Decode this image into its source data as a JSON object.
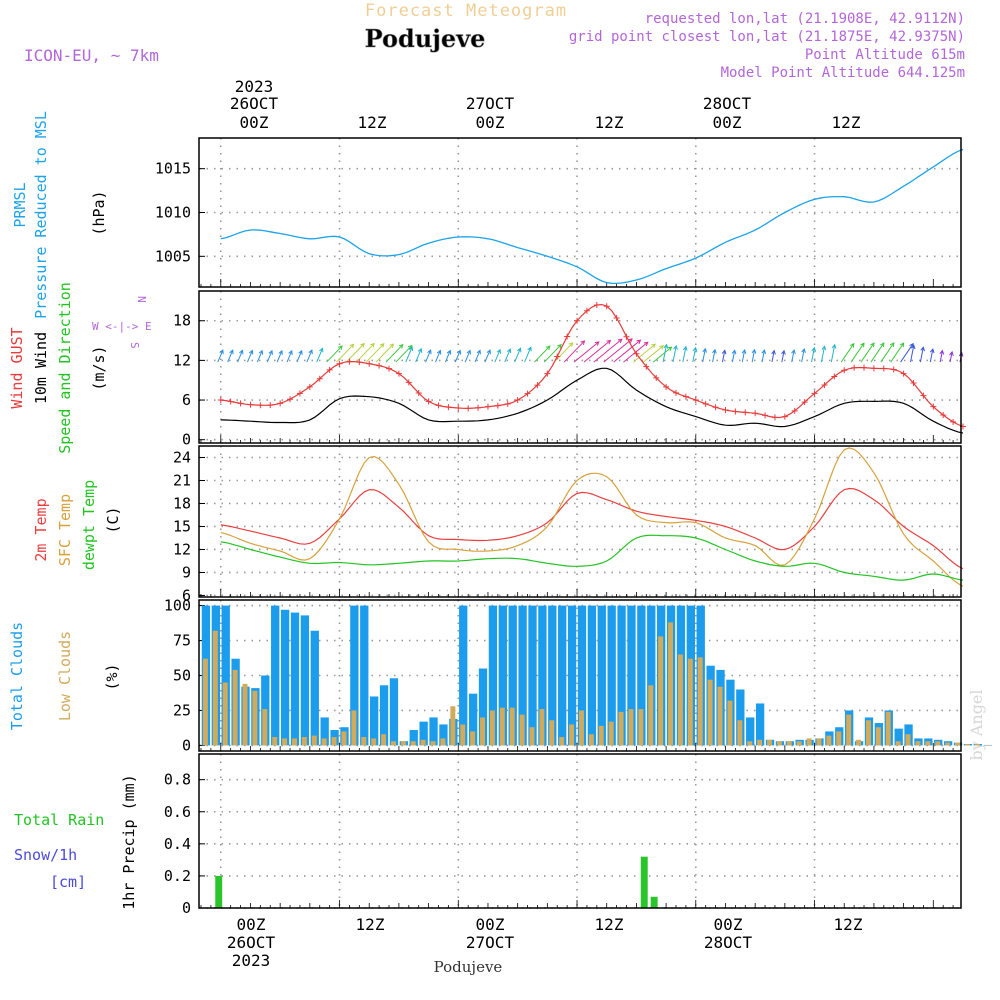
{
  "header": {
    "title": "Forecast Meteogram",
    "location": "Podujeve",
    "model": "ICON-EU, ~ 7km",
    "requested": "requested lon,lat (21.1908E, 42.9112N)",
    "gridpoint": "grid point closest lon,lat (21.1875E, 42.9375N)",
    "point_alt": "Point Altitude 615m",
    "model_alt": "Model Point Altitude 644.125m",
    "footer": "Podujeve",
    "watermark": "by Angel"
  },
  "time_axis": {
    "top_ticks": [
      "00Z",
      "12Z",
      "00Z",
      "12Z",
      "00Z",
      "12Z"
    ],
    "top_dates": [
      [
        "2023",
        "26OCT"
      ],
      [
        "27OCT"
      ],
      [
        "28OCT"
      ]
    ],
    "bottom_ticks": [
      "00Z",
      "12Z",
      "00Z",
      "12Z",
      "00Z",
      "12Z"
    ],
    "bottom_dates": [
      [
        "26OCT",
        "2023"
      ],
      [
        "27OCT"
      ],
      [
        "28OCT"
      ]
    ]
  },
  "panel_labels": {
    "p1": [
      "PRMSL",
      "Pressure Reduced to MSL",
      "(hPa)"
    ],
    "p2": [
      "Wind GUST",
      "10m Wind",
      "Speed and Direction",
      "(m/s)"
    ],
    "compass": [
      "N",
      "W <-|-> E",
      "S"
    ],
    "p3": [
      "2m Temp",
      "SFC Temp",
      "dewpt Temp",
      "(C)"
    ],
    "p4": [
      "Total Clouds",
      "Low Clouds",
      "(%)"
    ],
    "p5": [
      "Total  Rain",
      "Snow/1h",
      "[cm]",
      "1hr Precip (mm)"
    ]
  },
  "colors": {
    "pressure": "#1ca3e8",
    "gust": "#e83b3b",
    "wind": "#000000",
    "t2m": "#e84040",
    "tsfc": "#d6a23c",
    "dewpt": "#22c322",
    "totalcloud": "#1c9cec",
    "lowcloud": "#d2aa5a",
    "rain": "#2ac52a",
    "magenta": "#b366d9",
    "title": "#f0cf96",
    "grid": "#9a9a9a",
    "frame": "#000000",
    "snowlabel": "#4a4adc"
  },
  "chart_data": [
    {
      "type": "line",
      "name": "PRMSL (hPa)",
      "yticks": [
        1005,
        1010,
        1015
      ],
      "ylim": [
        1001.5,
        1018.5
      ],
      "x": [
        0,
        3,
        6,
        9,
        12,
        15,
        18,
        21,
        24,
        27,
        30,
        33,
        36,
        39,
        42,
        45,
        48,
        51,
        54,
        57,
        60,
        63,
        66,
        69,
        72,
        75
      ],
      "values": [
        1007.0,
        1008.0,
        1007.6,
        1007.0,
        1007.2,
        1005.3,
        1005.2,
        1006.5,
        1007.2,
        1007.0,
        1006.0,
        1005.0,
        1003.8,
        1002.0,
        1002.3,
        1003.6,
        1004.8,
        1006.6,
        1008.0,
        1010.0,
        1011.5,
        1011.8,
        1011.2,
        1013.0,
        1015.2,
        1017.2
      ]
    },
    {
      "type": "line",
      "name": "Wind GUST and 10m Wind (m/s)",
      "yticks": [
        0,
        6,
        12,
        18
      ],
      "ylim": [
        -0.5,
        22.5
      ],
      "x": [
        0,
        3,
        6,
        9,
        12,
        15,
        18,
        21,
        24,
        27,
        30,
        33,
        36,
        39,
        42,
        45,
        48,
        51,
        54,
        57,
        60,
        63,
        66,
        69,
        72,
        75
      ],
      "series": [
        {
          "name": "Wind GUST",
          "values": [
            6.0,
            5.3,
            5.5,
            8.0,
            11.5,
            11.5,
            10.0,
            5.8,
            4.8,
            5.0,
            6.0,
            10.0,
            18.0,
            20.2,
            13.0,
            8.0,
            6.0,
            4.5,
            4.0,
            3.5,
            7.0,
            10.5,
            10.8,
            10.0,
            5.0,
            2.0
          ]
        },
        {
          "name": "10m Wind",
          "values": [
            3.0,
            2.8,
            2.6,
            3.0,
            6.2,
            6.5,
            5.5,
            3.0,
            2.8,
            3.0,
            4.0,
            6.0,
            9.0,
            10.8,
            7.5,
            5.0,
            3.5,
            2.2,
            2.5,
            2.0,
            3.5,
            5.5,
            5.8,
            5.5,
            2.8,
            1.0
          ]
        }
      ]
    },
    {
      "type": "line",
      "name": "Temperature (C)",
      "yticks": [
        6,
        9,
        12,
        15,
        18,
        21,
        24
      ],
      "ylim": [
        5.8,
        25.5
      ],
      "x": [
        0,
        3,
        6,
        9,
        12,
        15,
        18,
        21,
        24,
        27,
        30,
        33,
        36,
        39,
        42,
        45,
        48,
        51,
        54,
        57,
        60,
        63,
        66,
        69,
        72,
        75
      ],
      "series": [
        {
          "name": "2m Temp",
          "values": [
            15.2,
            14.4,
            13.5,
            12.8,
            16.0,
            19.8,
            17.5,
            13.8,
            13.3,
            13.2,
            13.8,
            15.5,
            19.3,
            18.5,
            17.0,
            16.3,
            15.8,
            15.0,
            13.5,
            12.0,
            15.0,
            19.8,
            18.5,
            15.0,
            12.5,
            9.5
          ]
        },
        {
          "name": "SFC Temp",
          "values": [
            14.2,
            12.8,
            11.8,
            10.8,
            16.0,
            24.0,
            20.5,
            13.0,
            12.0,
            11.8,
            12.5,
            15.0,
            21.0,
            21.5,
            16.5,
            15.5,
            15.5,
            13.5,
            12.5,
            10.0,
            16.0,
            25.0,
            22.0,
            14.0,
            10.5,
            7.2
          ]
        },
        {
          "name": "dewpt Temp",
          "values": [
            13.0,
            12.0,
            11.0,
            10.2,
            10.3,
            10.0,
            10.2,
            10.5,
            10.5,
            10.8,
            10.8,
            10.2,
            9.8,
            10.5,
            13.5,
            13.8,
            13.5,
            12.0,
            10.5,
            9.8,
            10.2,
            9.0,
            8.5,
            8.0,
            8.8,
            8.0
          ]
        }
      ]
    },
    {
      "type": "bar",
      "name": "Clouds (%)",
      "yticks": [
        0,
        25,
        50,
        75,
        100
      ],
      "ylim": [
        -4,
        104
      ],
      "series": [
        {
          "name": "Total Clouds",
          "values": [
            100,
            100,
            100,
            62,
            42,
            41,
            50,
            100,
            97,
            95,
            93,
            82,
            20,
            11,
            13,
            100,
            100,
            35,
            43,
            48,
            3,
            11,
            17,
            20,
            15,
            19,
            100,
            37,
            55,
            100,
            100,
            100,
            100,
            100,
            100,
            100,
            100,
            100,
            100,
            100,
            100,
            100,
            100,
            100,
            100,
            100,
            100,
            100,
            100,
            100,
            100,
            57,
            54,
            47,
            40,
            20,
            30,
            4,
            3,
            3,
            4,
            4,
            5,
            10,
            13,
            25,
            3,
            20,
            16,
            25,
            12,
            15,
            5,
            5,
            4,
            3,
            2,
            1,
            1,
            0
          ]
        },
        {
          "name": "Low Clouds",
          "values": [
            62,
            82,
            45,
            54,
            44,
            39,
            26,
            6,
            5,
            5,
            6,
            7,
            5,
            6,
            10,
            25,
            6,
            5,
            8,
            3,
            3,
            3,
            4,
            3,
            5,
            28,
            15,
            10,
            20,
            25,
            27,
            27,
            22,
            13,
            26,
            18,
            6,
            15,
            25,
            8,
            14,
            17,
            24,
            26,
            26,
            43,
            78,
            88,
            65,
            62,
            63,
            47,
            42,
            32,
            18,
            3,
            4,
            4,
            3,
            3,
            3,
            5,
            5,
            7,
            10,
            22,
            4,
            18,
            13,
            24,
            3,
            8,
            3,
            3,
            3,
            2,
            2,
            1,
            1,
            0
          ]
        }
      ]
    },
    {
      "type": "bar",
      "name": "1hr Precip (mm)",
      "yticks": [
        0,
        0.2,
        0.4,
        0.6,
        0.8
      ],
      "yticklabels": [
        "0",
        "0.2",
        "0.4",
        "0.6",
        "0.8"
      ],
      "ylim": [
        0,
        0.96
      ],
      "x": [
        0.5,
        43.5,
        44.5
      ],
      "values": [
        0.2,
        0.32,
        0.07
      ]
    }
  ]
}
